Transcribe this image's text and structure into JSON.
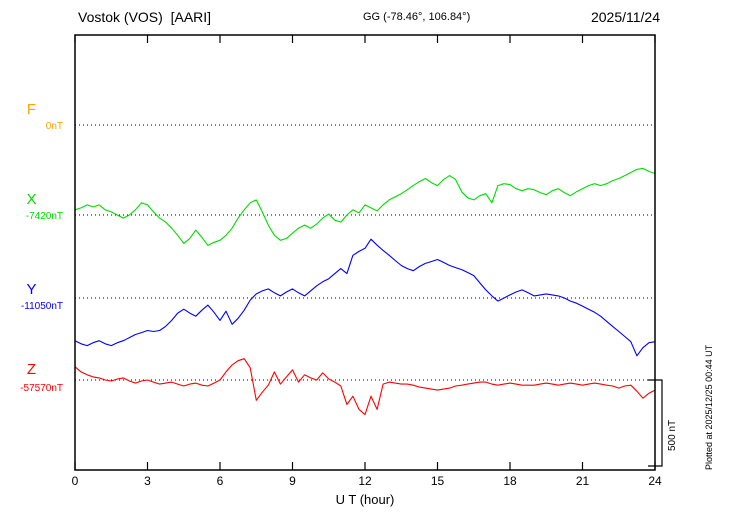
{
  "header": {
    "station": "Vostok (VOS)  [AARI]",
    "coords": "GG (-78.46°, 106.84°)",
    "date": "2025/11/24"
  },
  "footer": {
    "plotted_at": "Plotted at 2025/12/25 00:44 UT"
  },
  "axis": {
    "xlabel": "U T (hour)",
    "xmin": 0,
    "xmax": 24,
    "ticks": [
      0,
      3,
      6,
      9,
      12,
      15,
      18,
      21,
      24
    ]
  },
  "scalebar": {
    "label": "500 nT",
    "nT": 500
  },
  "chart_data": {
    "type": "line",
    "title": "Vostok (VOS) [AARI] magnetogram 2025/11/24",
    "x_unit": "hour",
    "x_range": [
      0,
      24
    ],
    "sample_step_hours": 0.25,
    "scale_nT_per_div": 500,
    "grid": "dotted baselines per component",
    "series": [
      {
        "name": "F",
        "color": "#ffa500",
        "baseline_label": "0nT",
        "baseline_value_nT": 0,
        "values": []
      },
      {
        "name": "X",
        "color": "#00dd00",
        "baseline_label": "-7420nT",
        "baseline_value_nT": -7420,
        "values": [
          30,
          41,
          59,
          47,
          59,
          30,
          18,
          0,
          -18,
          0,
          30,
          71,
          59,
          18,
          -18,
          -41,
          -77,
          -118,
          -165,
          -136,
          -88,
          -130,
          -177,
          -159,
          -147,
          -118,
          -77,
          -18,
          30,
          71,
          88,
          18,
          -59,
          -118,
          -147,
          -136,
          -106,
          -77,
          -59,
          -77,
          -53,
          -18,
          6,
          -30,
          -41,
          0,
          30,
          12,
          59,
          41,
          24,
          59,
          88,
          106,
          124,
          147,
          171,
          194,
          212,
          188,
          171,
          206,
          229,
          206,
          135,
          100,
          88,
          112,
          124,
          71,
          171,
          182,
          177,
          153,
          141,
          153,
          147,
          130,
          118,
          141,
          153,
          130,
          112,
          135,
          153,
          171,
          182,
          171,
          182,
          200,
          212,
          229,
          247,
          265,
          271,
          253,
          241
        ]
      },
      {
        "name": "Y",
        "color": "#0000ff",
        "baseline_label": "-11050nT",
        "baseline_value_nT": -11050,
        "values": [
          -248,
          -266,
          -277,
          -260,
          -248,
          -266,
          -277,
          -260,
          -248,
          -230,
          -212,
          -201,
          -189,
          -195,
          -189,
          -165,
          -130,
          -88,
          -65,
          -88,
          -106,
          -71,
          -41,
          -83,
          -130,
          -77,
          -153,
          -118,
          -71,
          -12,
          24,
          41,
          53,
          30,
          12,
          35,
          53,
          30,
          12,
          41,
          71,
          94,
          112,
          142,
          171,
          142,
          248,
          271,
          289,
          342,
          307,
          277,
          248,
          218,
          189,
          171,
          159,
          183,
          201,
          212,
          224,
          207,
          189,
          177,
          165,
          148,
          130,
          88,
          47,
          12,
          -18,
          0,
          18,
          35,
          47,
          30,
          12,
          18,
          24,
          18,
          12,
          0,
          -18,
          -30,
          -47,
          -65,
          -83,
          -106,
          -136,
          -165,
          -195,
          -224,
          -254,
          -336,
          -289,
          -260,
          -254
        ]
      },
      {
        "name": "Z",
        "color": "#ff0000",
        "baseline_label": "-57570nT",
        "baseline_value_nT": -57570,
        "values": [
          77,
          47,
          30,
          18,
          12,
          0,
          -6,
          6,
          12,
          -6,
          -18,
          -6,
          0,
          -12,
          -24,
          -18,
          -12,
          -24,
          -35,
          -24,
          -18,
          -30,
          -35,
          -18,
          0,
          47,
          88,
          112,
          124,
          71,
          -118,
          -71,
          -30,
          47,
          -24,
          18,
          59,
          -12,
          30,
          12,
          0,
          41,
          6,
          -12,
          -35,
          -142,
          -94,
          -171,
          -201,
          -94,
          -171,
          -24,
          -12,
          -18,
          -24,
          -24,
          -30,
          -41,
          -47,
          -53,
          -59,
          -53,
          -47,
          -35,
          -30,
          -24,
          -18,
          -12,
          -12,
          -24,
          -30,
          -24,
          -18,
          -24,
          -30,
          -30,
          -30,
          -24,
          -18,
          -24,
          -30,
          -24,
          -18,
          -24,
          -30,
          -24,
          -18,
          -24,
          -30,
          -35,
          -47,
          -35,
          -30,
          -65,
          -106,
          -77,
          -59
        ]
      }
    ]
  }
}
